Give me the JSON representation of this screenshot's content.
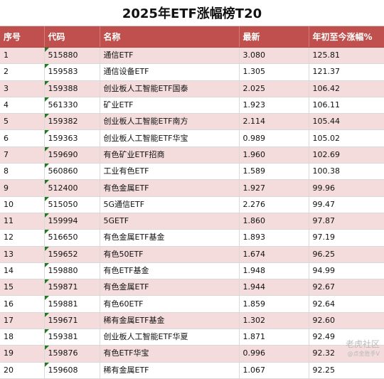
{
  "title": "2025年ETF涨幅榜T20",
  "headers": [
    "序号",
    "代码",
    "名称",
    "最新",
    "年初至今涨幅%"
  ],
  "rows": [
    [
      "1",
      "515880",
      "通信ETF",
      "3.080",
      "125.81"
    ],
    [
      "2",
      "159583",
      "通信设备ETF",
      "1.305",
      "121.37"
    ],
    [
      "3",
      "159388",
      "创业板人工智能ETF国泰",
      "2.025",
      "106.42"
    ],
    [
      "4",
      "561330",
      "矿业ETF",
      "1.923",
      "106.11"
    ],
    [
      "5",
      "159382",
      "创业板人工智能ETF南方",
      "2.114",
      "105.44"
    ],
    [
      "6",
      "159363",
      "创业板人工智能ETF华宝",
      "0.989",
      "105.02"
    ],
    [
      "7",
      "159690",
      "有色矿业ETF招商",
      "1.960",
      "102.69"
    ],
    [
      "8",
      "560860",
      "工业有色ETF",
      "1.589",
      "100.38"
    ],
    [
      "9",
      "512400",
      "有色金属ETF",
      "1.927",
      "99.96"
    ],
    [
      "10",
      "515050",
      "5G通信ETF",
      "2.276",
      "99.47"
    ],
    [
      "11",
      "159994",
      "5GETF",
      "1.860",
      "97.87"
    ],
    [
      "12",
      "516650",
      "有色金属ETF基金",
      "1.893",
      "97.19"
    ],
    [
      "13",
      "159652",
      "有色50ETF",
      "1.674",
      "96.25"
    ],
    [
      "14",
      "159880",
      "有色ETF基金",
      "1.948",
      "94.99"
    ],
    [
      "15",
      "159871",
      "有色金属ETF",
      "1.944",
      "92.67"
    ],
    [
      "16",
      "159881",
      "有色60ETF",
      "1.859",
      "92.64"
    ],
    [
      "17",
      "159671",
      "稀有金属ETF基金",
      "1.302",
      "92.60"
    ],
    [
      "18",
      "159381",
      "创业板人工智能ETF华夏",
      "1.871",
      "92.49"
    ],
    [
      "19",
      "159876",
      "有色ETF华宝",
      "0.996",
      "92.32"
    ],
    [
      "20",
      "159608",
      "稀有金属ETF",
      "1.067",
      "92.25"
    ]
  ],
  "watermark": {
    "main": "老虎社区",
    "sub": "@点金胜手V"
  }
}
